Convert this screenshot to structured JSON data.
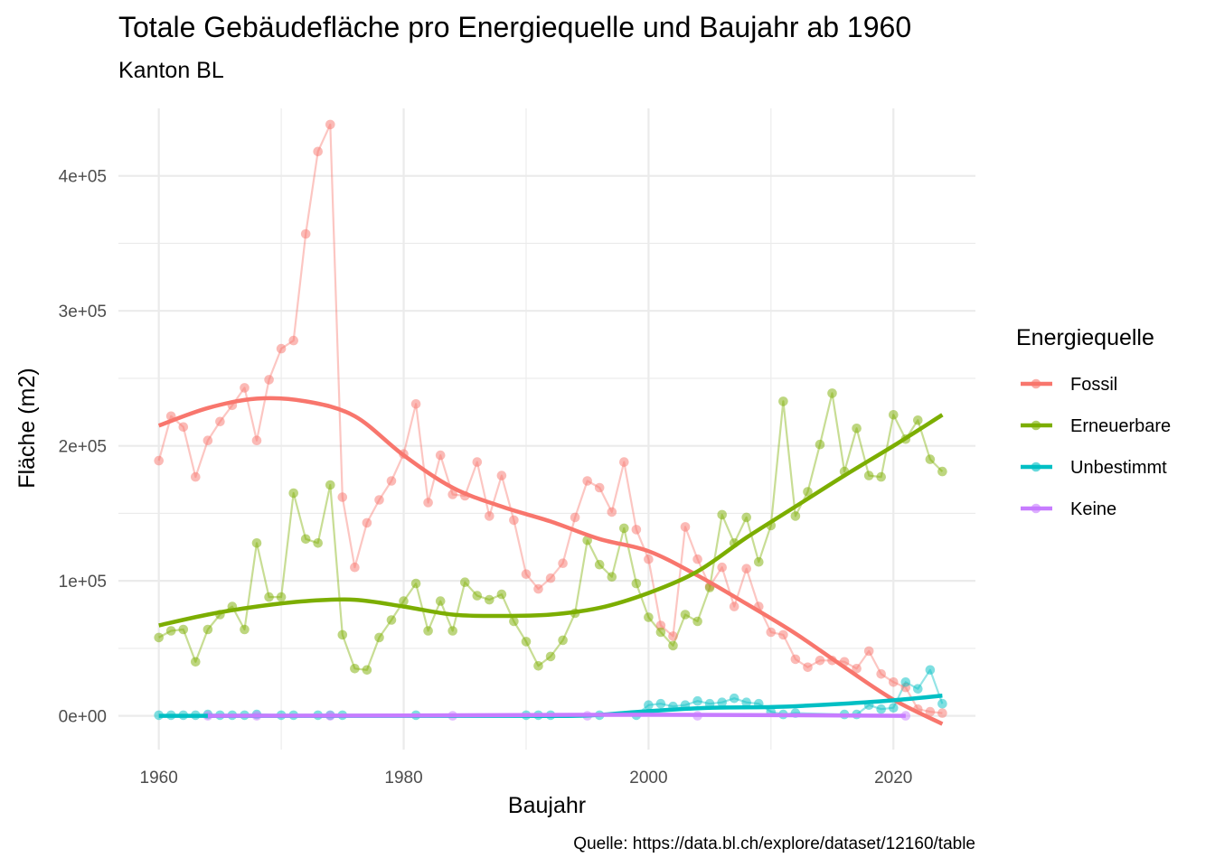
{
  "colors": {
    "Fossil": "#F8766D",
    "Erneuerbare": "#7CAE00",
    "Unbestimmt": "#00BFC4",
    "Keine": "#C77CFF",
    "grid": "#EBEBEB",
    "tick_text": "#4d4d4d"
  },
  "chart_data": {
    "type": "line",
    "title": "Totale Gebäudefläche pro Energiequelle und Baujahr ab 1960",
    "subtitle": "Kanton BL",
    "xlabel": "Baujahr",
    "ylabel": "Fläche (m2)",
    "caption": "Quelle: https://data.bl.ch/explore/dataset/12160/table",
    "xlim": [
      1956.7,
      2026.7
    ],
    "ylim": [
      -25000,
      450000
    ],
    "x_ticks": [
      1960,
      1980,
      2000,
      2020
    ],
    "x_tick_labels": [
      "1960",
      "1980",
      "2000",
      "2020"
    ],
    "y_ticks": [
      0,
      100000,
      200000,
      300000,
      400000
    ],
    "y_tick_labels": [
      "0e+00",
      "1e+05",
      "2e+05",
      "3e+05",
      "4e+05"
    ],
    "grid": true,
    "legend": {
      "title": "Energiequelle",
      "position": "right"
    },
    "series": [
      {
        "name": "Fossil",
        "x": [
          1960,
          1961,
          1962,
          1963,
          1964,
          1965,
          1966,
          1967,
          1968,
          1969,
          1970,
          1971,
          1972,
          1973,
          1974,
          1975,
          1976,
          1977,
          1978,
          1979,
          1980,
          1981,
          1982,
          1983,
          1984,
          1985,
          1986,
          1987,
          1988,
          1989,
          1990,
          1991,
          1992,
          1993,
          1994,
          1995,
          1996,
          1997,
          1998,
          1999,
          2000,
          2001,
          2002,
          2003,
          2004,
          2005,
          2006,
          2007,
          2008,
          2009,
          2010,
          2011,
          2012,
          2013,
          2014,
          2015,
          2016,
          2017,
          2018,
          2019,
          2020,
          2021,
          2022,
          2023,
          2024
        ],
        "values": [
          189000,
          222000,
          214000,
          177000,
          204000,
          218000,
          230000,
          243000,
          204000,
          249000,
          272000,
          278000,
          357000,
          418000,
          438000,
          162000,
          110000,
          143000,
          160000,
          174000,
          194000,
          231000,
          158000,
          193000,
          164000,
          163000,
          188000,
          148000,
          178000,
          145000,
          105000,
          94000,
          102000,
          113000,
          147000,
          174000,
          169000,
          151000,
          188000,
          138000,
          116000,
          67000,
          59000,
          140000,
          116000,
          96000,
          110000,
          81000,
          109000,
          81000,
          62000,
          60000,
          42000,
          36000,
          41000,
          41000,
          40000,
          35000,
          48000,
          31000,
          25000,
          21000,
          5000,
          3000,
          2000
        ],
        "smooth_x": [
          1960,
          1964,
          1968,
          1972,
          1976,
          1980,
          1984,
          1988,
          1992,
          1996,
          2000,
          2004,
          2008,
          2012,
          2016,
          2020,
          2024
        ],
        "smooth_y": [
          215000,
          228000,
          235000,
          233000,
          222000,
          193000,
          169000,
          155000,
          144000,
          131000,
          122000,
          104000,
          83000,
          61000,
          36000,
          12000,
          -6000
        ]
      },
      {
        "name": "Erneuerbare",
        "x": [
          1960,
          1961,
          1962,
          1963,
          1964,
          1965,
          1966,
          1967,
          1968,
          1969,
          1970,
          1971,
          1972,
          1973,
          1974,
          1975,
          1976,
          1977,
          1978,
          1979,
          1980,
          1981,
          1982,
          1983,
          1984,
          1985,
          1986,
          1987,
          1988,
          1989,
          1990,
          1991,
          1992,
          1993,
          1994,
          1995,
          1996,
          1997,
          1998,
          1999,
          2000,
          2001,
          2002,
          2003,
          2004,
          2005,
          2006,
          2007,
          2008,
          2009,
          2010,
          2011,
          2012,
          2013,
          2014,
          2015,
          2016,
          2017,
          2018,
          2019,
          2020,
          2021,
          2022,
          2023,
          2024
        ],
        "values": [
          58000,
          63000,
          64000,
          40000,
          64000,
          75000,
          81000,
          64000,
          128000,
          88000,
          88000,
          165000,
          131000,
          128000,
          171000,
          60000,
          35000,
          34000,
          58000,
          71000,
          85000,
          98000,
          63000,
          85000,
          63000,
          99000,
          89000,
          86000,
          90000,
          70000,
          55000,
          37000,
          44000,
          56000,
          76000,
          130000,
          112000,
          103000,
          139000,
          98000,
          73000,
          62000,
          52000,
          75000,
          70000,
          95000,
          149000,
          128000,
          147000,
          114000,
          141000,
          233000,
          148000,
          166000,
          201000,
          239000,
          181000,
          213000,
          178000,
          177000,
          223000,
          205000,
          219000,
          190000,
          181000
        ],
        "smooth_x": [
          1960,
          1964,
          1968,
          1972,
          1976,
          1980,
          1984,
          1988,
          1992,
          1996,
          2000,
          2004,
          2008,
          2012,
          2016,
          2020,
          2024
        ],
        "smooth_y": [
          67000,
          75000,
          81000,
          85000,
          86000,
          81000,
          75000,
          74000,
          75000,
          80000,
          91000,
          107000,
          132000,
          155000,
          178000,
          200000,
          223000
        ]
      },
      {
        "name": "Unbestimmt",
        "x": [
          1960,
          1961,
          1962,
          1963,
          1964,
          1965,
          1966,
          1967,
          1968,
          1970,
          1971,
          1973,
          1974,
          1975,
          1981,
          1990,
          1991,
          1992,
          1996,
          1999,
          2000,
          2001,
          2002,
          2003,
          2004,
          2005,
          2006,
          2007,
          2008,
          2009,
          2010,
          2011,
          2012,
          2016,
          2017,
          2018,
          2019,
          2020,
          2021,
          2022,
          2023,
          2024
        ],
        "values": [
          500,
          500,
          500,
          500,
          1000,
          500,
          500,
          500,
          1000,
          500,
          500,
          500,
          500,
          500,
          500,
          500,
          500,
          500,
          500,
          500,
          8000,
          9000,
          7000,
          8000,
          11000,
          9000,
          10000,
          13000,
          10000,
          9000,
          3000,
          1000,
          2000,
          1000,
          1000,
          8000,
          5000,
          6000,
          25000,
          20000,
          34000,
          9000
        ],
        "smooth_x": [
          1960,
          1970,
          1980,
          1990,
          1995,
          2000,
          2005,
          2010,
          2015,
          2020,
          2024
        ],
        "smooth_y": [
          0,
          0,
          0,
          0,
          200,
          3500,
          6000,
          6500,
          8500,
          11500,
          15000
        ]
      },
      {
        "name": "Keine",
        "x": [
          1964,
          1968,
          1974,
          1984,
          1995,
          2004,
          2021
        ],
        "values": [
          0,
          0,
          0,
          0,
          0,
          0,
          0
        ],
        "smooth_x": [
          1964,
          1980,
          2000,
          2021
        ],
        "smooth_y": [
          0,
          300,
          800,
          0
        ]
      }
    ]
  }
}
